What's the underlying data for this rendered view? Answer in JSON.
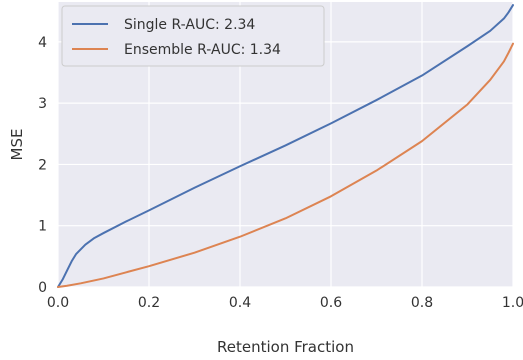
{
  "chart_data": {
    "type": "line",
    "title": "",
    "xlabel": "Retention Fraction",
    "ylabel": "MSE",
    "xlim": [
      0.0,
      1.0
    ],
    "ylim": [
      0.0,
      4.65
    ],
    "x_ticks": [
      0.0,
      0.2,
      0.4,
      0.6,
      0.8,
      1.0
    ],
    "x_tick_labels": [
      "0.0",
      "0.2",
      "0.4",
      "0.6",
      "0.8",
      "1.0"
    ],
    "y_ticks": [
      0,
      1,
      2,
      3,
      4
    ],
    "y_tick_labels": [
      "0",
      "1",
      "2",
      "3",
      "4"
    ],
    "grid": true,
    "legend": {
      "location": "top-left"
    },
    "series": [
      {
        "name": "Single R-AUC: 2.34",
        "color": "#4c72b0",
        "x": [
          0.0,
          0.01,
          0.02,
          0.03,
          0.04,
          0.06,
          0.08,
          0.1,
          0.15,
          0.2,
          0.3,
          0.4,
          0.5,
          0.6,
          0.7,
          0.8,
          0.9,
          0.95,
          0.98,
          0.99,
          1.0
        ],
        "y": [
          0.0,
          0.12,
          0.27,
          0.42,
          0.54,
          0.69,
          0.8,
          0.88,
          1.07,
          1.25,
          1.62,
          1.97,
          2.31,
          2.67,
          3.05,
          3.45,
          3.93,
          4.18,
          4.38,
          4.48,
          4.6
        ]
      },
      {
        "name": "Ensemble R-AUC: 1.34",
        "color": "#dd8452",
        "x": [
          0.0,
          0.02,
          0.05,
          0.1,
          0.15,
          0.2,
          0.3,
          0.4,
          0.5,
          0.6,
          0.7,
          0.8,
          0.9,
          0.95,
          0.98,
          0.99,
          1.0
        ],
        "y": [
          0.0,
          0.02,
          0.06,
          0.14,
          0.24,
          0.34,
          0.56,
          0.82,
          1.12,
          1.48,
          1.9,
          2.38,
          2.98,
          3.38,
          3.68,
          3.82,
          3.97
        ]
      }
    ]
  }
}
